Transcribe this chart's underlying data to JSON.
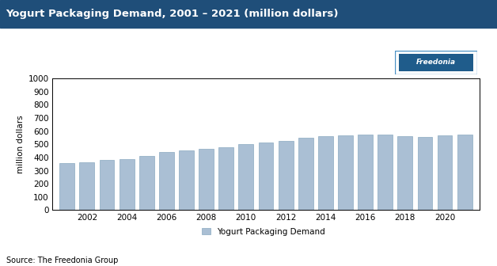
{
  "title": "Yogurt Packaging Demand, 2001 – 2021 (million dollars)",
  "title_bg_color": "#1F4E79",
  "title_text_color": "#FFFFFF",
  "ylabel": "million dollars",
  "years": [
    2001,
    2002,
    2003,
    2004,
    2005,
    2006,
    2007,
    2008,
    2009,
    2010,
    2011,
    2012,
    2013,
    2014,
    2015,
    2016,
    2017,
    2018,
    2019,
    2020,
    2021
  ],
  "values": [
    355,
    362,
    383,
    388,
    413,
    440,
    455,
    468,
    480,
    500,
    513,
    525,
    548,
    560,
    565,
    572,
    572,
    560,
    558,
    565,
    575
  ],
  "bar_color": "#AABFD4",
  "bar_edgecolor": "#8AAAC0",
  "ylim": [
    0,
    1000
  ],
  "yticks": [
    0,
    100,
    200,
    300,
    400,
    500,
    600,
    700,
    800,
    900,
    1000
  ],
  "legend_label": "Yogurt Packaging Demand",
  "source_text": "Source: The Freedonia Group",
  "freedonia_bg": "#1F5C8B",
  "freedonia_border": "#4A90C4",
  "bg_color": "#FFFFFF",
  "xtick_years": [
    2002,
    2004,
    2006,
    2008,
    2010,
    2012,
    2014,
    2016,
    2018,
    2020
  ]
}
